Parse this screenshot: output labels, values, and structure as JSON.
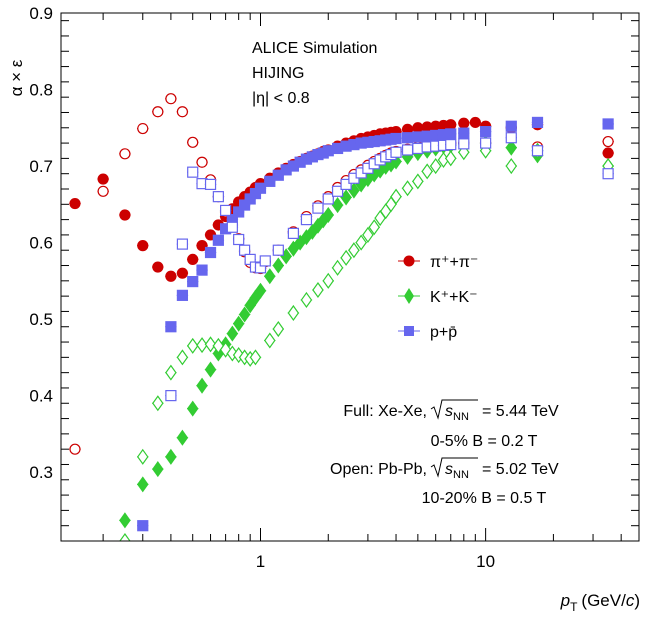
{
  "chart_data": {
    "type": "scatter",
    "ylabel": "α × ε",
    "xlabel_main": "p",
    "xlabel_sub": "T",
    "xlabel_units_pre": "(GeV/",
    "xlabel_units_c": "c",
    "xlabel_units_post": ")",
    "xscale": "log",
    "xlim": [
      0.13,
      48
    ],
    "ylim": [
      0.21,
      0.9
    ],
    "yticks": [
      0.3,
      0.4,
      0.5,
      0.6,
      0.7,
      0.8,
      0.9
    ],
    "ytick_labels": [
      "0.3",
      "0.4",
      "0.5",
      "0.6",
      "0.7",
      "0.8",
      "0.9"
    ],
    "xtick_labels": [
      {
        "value": 1,
        "label": "1"
      },
      {
        "value": 10,
        "label": "10"
      }
    ],
    "grid": false,
    "annotations": {
      "line1": "ALICE Simulation",
      "line2": "HIJING",
      "line3": "|η| < 0.8",
      "full_label": "Full: Xe-Xe,",
      "full_energy": "= 5.44 TeV",
      "full_cent": "0-5% B = 0.2 T",
      "open_label": "Open: Pb-Pb,",
      "open_energy": "= 5.02 TeV",
      "open_cent": "10-20% B = 0.5 T",
      "sqrt_s": "s",
      "sqrt_sub": "NN"
    },
    "legend_position": "right-middle",
    "legend": [
      {
        "key": "pion",
        "label": "π⁺+π⁻",
        "marker": "circle",
        "color": "#cc0000"
      },
      {
        "key": "kaon",
        "label": "K⁺+K⁻",
        "marker": "diamond",
        "color": "#33cc33"
      },
      {
        "key": "proton",
        "label": "p+p̄",
        "marker": "square",
        "color": "#6666ee"
      }
    ],
    "series": [
      {
        "particle": "pion",
        "system": "Xe-Xe",
        "fill": "full",
        "marker": "circle",
        "color": "#cc0000",
        "points": [
          [
            0.15,
            0.651
          ],
          [
            0.2,
            0.683
          ],
          [
            0.25,
            0.636
          ],
          [
            0.3,
            0.596
          ],
          [
            0.35,
            0.568
          ],
          [
            0.4,
            0.556
          ],
          [
            0.45,
            0.56
          ],
          [
            0.5,
            0.578
          ],
          [
            0.55,
            0.596
          ],
          [
            0.6,
            0.61
          ],
          [
            0.65,
            0.623
          ],
          [
            0.7,
            0.634
          ],
          [
            0.75,
            0.644
          ],
          [
            0.8,
            0.653
          ],
          [
            0.85,
            0.66
          ],
          [
            0.9,
            0.666
          ],
          [
            0.95,
            0.672
          ],
          [
            1.0,
            0.677
          ],
          [
            1.1,
            0.684
          ],
          [
            1.2,
            0.691
          ],
          [
            1.3,
            0.697
          ],
          [
            1.4,
            0.702
          ],
          [
            1.5,
            0.706
          ],
          [
            1.6,
            0.71
          ],
          [
            1.7,
            0.713
          ],
          [
            1.8,
            0.716
          ],
          [
            1.9,
            0.719
          ],
          [
            2.0,
            0.721
          ],
          [
            2.2,
            0.726
          ],
          [
            2.4,
            0.73
          ],
          [
            2.6,
            0.733
          ],
          [
            2.8,
            0.736
          ],
          [
            3.0,
            0.738
          ],
          [
            3.2,
            0.74
          ],
          [
            3.4,
            0.742
          ],
          [
            3.6,
            0.743
          ],
          [
            3.8,
            0.744
          ],
          [
            4.0,
            0.745
          ],
          [
            4.5,
            0.748
          ],
          [
            5.0,
            0.75
          ],
          [
            5.5,
            0.751
          ],
          [
            6.0,
            0.752
          ],
          [
            6.5,
            0.753
          ],
          [
            7.0,
            0.754
          ],
          [
            8.0,
            0.756
          ],
          [
            9.0,
            0.757
          ],
          [
            10.0,
            0.752
          ],
          [
            13.0,
            0.75
          ],
          [
            17.0,
            0.754
          ],
          [
            35.0,
            0.717
          ]
        ]
      },
      {
        "particle": "pion",
        "system": "Pb-Pb",
        "fill": "open",
        "marker": "circle",
        "color": "#cc0000",
        "points": [
          [
            0.15,
            0.33
          ],
          [
            0.2,
            0.667
          ],
          [
            0.25,
            0.716
          ],
          [
            0.3,
            0.749
          ],
          [
            0.35,
            0.771
          ],
          [
            0.4,
            0.788
          ],
          [
            0.45,
            0.771
          ],
          [
            0.5,
            0.731
          ],
          [
            0.55,
            0.705
          ],
          [
            0.6,
            0.682
          ],
          [
            0.65,
            0.66
          ],
          [
            0.7,
            0.64
          ],
          [
            0.75,
            0.623
          ],
          [
            0.8,
            0.605
          ],
          [
            0.85,
            0.588
          ],
          [
            0.9,
            0.574
          ],
          [
            0.95,
            0.567
          ],
          [
            1.0,
            0.566
          ],
          [
            1.05,
            0.575
          ],
          [
            1.2,
            0.59
          ],
          [
            1.4,
            0.614
          ],
          [
            1.6,
            0.634
          ],
          [
            1.8,
            0.648
          ],
          [
            2.0,
            0.66
          ],
          [
            2.2,
            0.672
          ],
          [
            2.4,
            0.681
          ],
          [
            2.6,
            0.689
          ],
          [
            2.8,
            0.695
          ],
          [
            3.0,
            0.701
          ],
          [
            3.2,
            0.706
          ],
          [
            3.4,
            0.71
          ],
          [
            3.6,
            0.714
          ],
          [
            3.8,
            0.717
          ],
          [
            4.0,
            0.719
          ],
          [
            4.5,
            0.722
          ],
          [
            5.0,
            0.725
          ],
          [
            5.5,
            0.727
          ],
          [
            6.0,
            0.729
          ],
          [
            6.5,
            0.73
          ],
          [
            7.0,
            0.73
          ],
          [
            8.0,
            0.73
          ],
          [
            10.0,
            0.73
          ],
          [
            17.0,
            0.725
          ],
          [
            35.0,
            0.732
          ]
        ]
      },
      {
        "particle": "kaon",
        "system": "Xe-Xe",
        "fill": "full",
        "marker": "diamond",
        "color": "#33cc33",
        "points": [
          [
            0.25,
            0.237
          ],
          [
            0.3,
            0.284
          ],
          [
            0.35,
            0.304
          ],
          [
            0.4,
            0.32
          ],
          [
            0.45,
            0.345
          ],
          [
            0.5,
            0.383
          ],
          [
            0.55,
            0.413
          ],
          [
            0.6,
            0.434
          ],
          [
            0.65,
            0.455
          ],
          [
            0.7,
            0.467
          ],
          [
            0.75,
            0.481
          ],
          [
            0.8,
            0.494
          ],
          [
            0.85,
            0.506
          ],
          [
            0.9,
            0.518
          ],
          [
            0.95,
            0.528
          ],
          [
            1.0,
            0.537
          ],
          [
            1.1,
            0.556
          ],
          [
            1.2,
            0.57
          ],
          [
            1.3,
            0.582
          ],
          [
            1.4,
            0.592
          ],
          [
            1.5,
            0.6
          ],
          [
            1.6,
            0.607
          ],
          [
            1.7,
            0.614
          ],
          [
            1.8,
            0.622
          ],
          [
            1.9,
            0.629
          ],
          [
            2.0,
            0.636
          ],
          [
            2.2,
            0.649
          ],
          [
            2.4,
            0.659
          ],
          [
            2.6,
            0.668
          ],
          [
            2.8,
            0.676
          ],
          [
            3.0,
            0.683
          ],
          [
            3.2,
            0.689
          ],
          [
            3.4,
            0.694
          ],
          [
            3.6,
            0.699
          ],
          [
            3.8,
            0.702
          ],
          [
            4.0,
            0.706
          ],
          [
            4.5,
            0.712
          ],
          [
            5.0,
            0.717
          ],
          [
            5.5,
            0.72
          ],
          [
            6.0,
            0.723
          ],
          [
            6.5,
            0.726
          ],
          [
            7.0,
            0.727
          ],
          [
            8.0,
            0.729
          ],
          [
            10.0,
            0.73
          ],
          [
            13.0,
            0.724
          ],
          [
            17.0,
            0.714
          ],
          [
            35.0,
            0.7
          ]
        ]
      },
      {
        "particle": "kaon",
        "system": "Pb-Pb",
        "fill": "open",
        "marker": "diamond",
        "color": "#33cc33",
        "points": [
          [
            0.25,
            0.21
          ],
          [
            0.3,
            0.32
          ],
          [
            0.35,
            0.39
          ],
          [
            0.4,
            0.43
          ],
          [
            0.45,
            0.45
          ],
          [
            0.5,
            0.465
          ],
          [
            0.55,
            0.466
          ],
          [
            0.6,
            0.467
          ],
          [
            0.65,
            0.465
          ],
          [
            0.7,
            0.46
          ],
          [
            0.75,
            0.455
          ],
          [
            0.8,
            0.453
          ],
          [
            0.85,
            0.45
          ],
          [
            0.9,
            0.448
          ],
          [
            0.95,
            0.45
          ],
          [
            1.1,
            0.472
          ],
          [
            1.2,
            0.487
          ],
          [
            1.4,
            0.508
          ],
          [
            1.6,
            0.525
          ],
          [
            1.8,
            0.538
          ],
          [
            2.0,
            0.55
          ],
          [
            2.2,
            0.567
          ],
          [
            2.4,
            0.58
          ],
          [
            2.6,
            0.59
          ],
          [
            2.8,
            0.6
          ],
          [
            3.0,
            0.61
          ],
          [
            3.2,
            0.62
          ],
          [
            3.4,
            0.632
          ],
          [
            3.6,
            0.641
          ],
          [
            3.8,
            0.65
          ],
          [
            4.0,
            0.66
          ],
          [
            4.5,
            0.671
          ],
          [
            5.0,
            0.68
          ],
          [
            5.5,
            0.693
          ],
          [
            6.0,
            0.7
          ],
          [
            6.5,
            0.708
          ],
          [
            7.0,
            0.71
          ],
          [
            8.0,
            0.718
          ],
          [
            10.0,
            0.72
          ],
          [
            13.0,
            0.7
          ],
          [
            17.0,
            0.72
          ],
          [
            35.0,
            0.7
          ]
        ]
      },
      {
        "particle": "proton",
        "system": "Xe-Xe",
        "fill": "full",
        "marker": "square",
        "color": "#6666ee",
        "points": [
          [
            0.3,
            0.23
          ],
          [
            0.4,
            0.49
          ],
          [
            0.45,
            0.531
          ],
          [
            0.5,
            0.549
          ],
          [
            0.55,
            0.564
          ],
          [
            0.6,
            0.587
          ],
          [
            0.65,
            0.603
          ],
          [
            0.7,
            0.618
          ],
          [
            0.75,
            0.63
          ],
          [
            0.8,
            0.64
          ],
          [
            0.85,
            0.649
          ],
          [
            0.9,
            0.657
          ],
          [
            0.95,
            0.664
          ],
          [
            1.0,
            0.671
          ],
          [
            1.1,
            0.68
          ],
          [
            1.2,
            0.688
          ],
          [
            1.3,
            0.695
          ],
          [
            1.4,
            0.7
          ],
          [
            1.5,
            0.705
          ],
          [
            1.6,
            0.709
          ],
          [
            1.7,
            0.712
          ],
          [
            1.8,
            0.715
          ],
          [
            1.9,
            0.717
          ],
          [
            2.0,
            0.72
          ],
          [
            2.2,
            0.723
          ],
          [
            2.4,
            0.726
          ],
          [
            2.6,
            0.728
          ],
          [
            2.8,
            0.73
          ],
          [
            3.0,
            0.731
          ],
          [
            3.2,
            0.732
          ],
          [
            3.4,
            0.733
          ],
          [
            3.6,
            0.734
          ],
          [
            3.8,
            0.735
          ],
          [
            4.0,
            0.736
          ],
          [
            4.5,
            0.737
          ],
          [
            5.0,
            0.738
          ],
          [
            5.5,
            0.739
          ],
          [
            6.0,
            0.74
          ],
          [
            6.5,
            0.741
          ],
          [
            7.0,
            0.742
          ],
          [
            8.0,
            0.743
          ],
          [
            10.0,
            0.745
          ],
          [
            13.0,
            0.752
          ],
          [
            17.0,
            0.757
          ],
          [
            35.0,
            0.755
          ]
        ]
      },
      {
        "particle": "proton",
        "system": "Pb-Pb",
        "fill": "open",
        "marker": "square",
        "color": "#6666ee",
        "points": [
          [
            0.4,
            0.4
          ],
          [
            0.45,
            0.598
          ],
          [
            0.5,
            0.692
          ],
          [
            0.55,
            0.677
          ],
          [
            0.6,
            0.676
          ],
          [
            0.65,
            0.66
          ],
          [
            0.7,
            0.642
          ],
          [
            0.75,
            0.62
          ],
          [
            0.8,
            0.604
          ],
          [
            0.85,
            0.59
          ],
          [
            0.9,
            0.578
          ],
          [
            0.95,
            0.568
          ],
          [
            1.0,
            0.567
          ],
          [
            1.05,
            0.576
          ],
          [
            1.2,
            0.59
          ],
          [
            1.4,
            0.612
          ],
          [
            1.6,
            0.63
          ],
          [
            1.8,
            0.645
          ],
          [
            2.0,
            0.657
          ],
          [
            2.2,
            0.667
          ],
          [
            2.4,
            0.676
          ],
          [
            2.6,
            0.684
          ],
          [
            2.8,
            0.691
          ],
          [
            3.0,
            0.697
          ],
          [
            3.2,
            0.703
          ],
          [
            3.4,
            0.708
          ],
          [
            3.6,
            0.712
          ],
          [
            3.8,
            0.715
          ],
          [
            4.0,
            0.718
          ],
          [
            4.5,
            0.721
          ],
          [
            5.0,
            0.723
          ],
          [
            5.5,
            0.725
          ],
          [
            6.0,
            0.726
          ],
          [
            6.5,
            0.727
          ],
          [
            7.0,
            0.728
          ],
          [
            8.0,
            0.729
          ],
          [
            10.0,
            0.73
          ],
          [
            13.0,
            0.737
          ],
          [
            17.0,
            0.72
          ],
          [
            35.0,
            0.69
          ]
        ]
      }
    ]
  }
}
